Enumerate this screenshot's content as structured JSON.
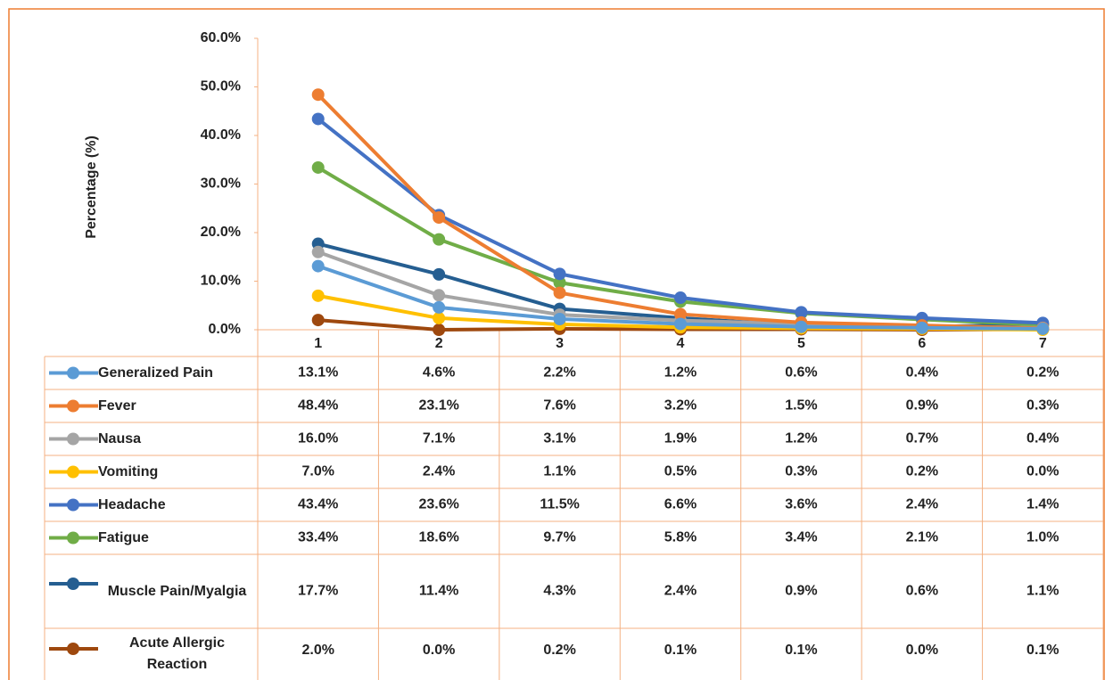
{
  "chart_data": {
    "type": "line",
    "y_label": "Percentage (%)",
    "categories": [
      "1",
      "2",
      "3",
      "4",
      "5",
      "6",
      "7"
    ],
    "ylim": [
      0,
      60
    ],
    "yticks": [
      {
        "value": 0,
        "label": "0.0%"
      },
      {
        "value": 10,
        "label": "10.0%"
      },
      {
        "value": 20,
        "label": "20.0%"
      },
      {
        "value": 30,
        "label": "30.0%"
      },
      {
        "value": 40,
        "label": "40.0%"
      },
      {
        "value": 50,
        "label": "50.0%"
      },
      {
        "value": 60,
        "label": "60.0%"
      }
    ],
    "grid": false,
    "series": [
      {
        "name": "Generalized Pain",
        "color": "#5b9bd5",
        "values": [
          13.1,
          4.6,
          2.2,
          1.2,
          0.6,
          0.4,
          0.2
        ],
        "value_labels": [
          "13.1%",
          "4.6%",
          "2.2%",
          "1.2%",
          "0.6%",
          "0.4%",
          "0.2%"
        ]
      },
      {
        "name": "Fever",
        "color": "#ed7d31",
        "values": [
          48.4,
          23.1,
          7.6,
          3.2,
          1.5,
          0.9,
          0.3
        ],
        "value_labels": [
          "48.4%",
          "23.1%",
          "7.6%",
          "3.2%",
          "1.5%",
          "0.9%",
          "0.3%"
        ]
      },
      {
        "name": "Nausa",
        "color": "#a5a5a5",
        "values": [
          16.0,
          7.1,
          3.1,
          1.9,
          1.2,
          0.7,
          0.4
        ],
        "value_labels": [
          "16.0%",
          "7.1%",
          "3.1%",
          "1.9%",
          "1.2%",
          "0.7%",
          "0.4%"
        ]
      },
      {
        "name": "Vomiting",
        "color": "#ffc000",
        "values": [
          7.0,
          2.4,
          1.1,
          0.5,
          0.3,
          0.2,
          0.0
        ],
        "value_labels": [
          "7.0%",
          "2.4%",
          "1.1%",
          "0.5%",
          "0.3%",
          "0.2%",
          "0.0%"
        ]
      },
      {
        "name": "Headache",
        "color": "#4472c4",
        "values": [
          43.4,
          23.6,
          11.5,
          6.6,
          3.6,
          2.4,
          1.4
        ],
        "value_labels": [
          "43.4%",
          "23.6%",
          "11.5%",
          "6.6%",
          "3.6%",
          "2.4%",
          "1.4%"
        ]
      },
      {
        "name": "Fatigue",
        "color": "#70ad47",
        "values": [
          33.4,
          18.6,
          9.7,
          5.8,
          3.4,
          2.1,
          1.0
        ],
        "value_labels": [
          "33.4%",
          "18.6%",
          "9.7%",
          "5.8%",
          "3.4%",
          "2.1%",
          "1.0%"
        ]
      },
      {
        "name": "Muscle Pain/Myalgia",
        "color": "#255e91",
        "values": [
          17.7,
          11.4,
          4.3,
          2.4,
          0.9,
          0.6,
          1.1
        ],
        "value_labels": [
          "17.7%",
          "11.4%",
          "4.3%",
          "2.4%",
          "0.9%",
          "0.6%",
          "1.1%"
        ]
      },
      {
        "name": "Acute Allergic Reaction",
        "color": "#9e480e",
        "values": [
          2.0,
          0.0,
          0.2,
          0.1,
          0.1,
          0.0,
          0.1
        ],
        "value_labels": [
          "2.0%",
          "0.0%",
          "0.2%",
          "0.1%",
          "0.1%",
          "0.0%",
          "0.1%"
        ]
      }
    ]
  }
}
